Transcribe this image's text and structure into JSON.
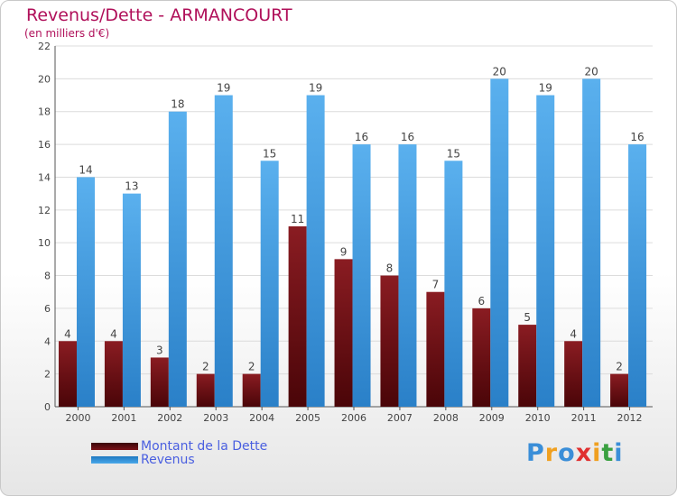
{
  "chart_data": {
    "type": "bar",
    "title": "Revenus/Dette - ARMANCOURT",
    "subtitle": "(en milliers d'€)",
    "categories": [
      "2000",
      "2001",
      "2002",
      "2003",
      "2004",
      "2005",
      "2006",
      "2007",
      "2008",
      "2009",
      "2010",
      "2011",
      "2012"
    ],
    "series": [
      {
        "name": "Montant de la Dette",
        "values": [
          4,
          4,
          3,
          2,
          2,
          11,
          9,
          8,
          7,
          6,
          5,
          4,
          2
        ],
        "color": "#7a1218"
      },
      {
        "name": "Revenus",
        "values": [
          14,
          13,
          18,
          19,
          15,
          19,
          16,
          16,
          15,
          20,
          19,
          20,
          16
        ],
        "color": "#3d9fe4"
      }
    ],
    "ylim": [
      0,
      22
    ],
    "yticks": [
      0,
      2,
      4,
      6,
      8,
      10,
      12,
      14,
      16,
      18,
      20,
      22
    ],
    "grid": true,
    "legend": "bottom-left"
  },
  "logo": {
    "p": "P",
    "r": "r",
    "o": "o",
    "x": "x",
    "i1": "i",
    "t": "t",
    "i2": "i"
  }
}
